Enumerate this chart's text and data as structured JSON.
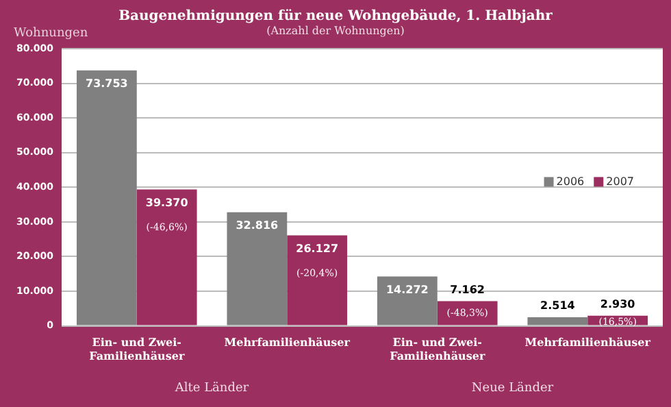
{
  "chart_data": {
    "type": "bar",
    "title": "Baugenehmigungen für neue Wohngebäude, 1. Halbjahr",
    "subtitle": "(Anzahl der Wohnungen)",
    "ylabel": "Wohnungen",
    "categories": [
      "Ein- und Zwei-Familienhäuser",
      "Mehrfamilienhäuser",
      "Ein- und Zwei-Familienhäuser",
      "Mehrfamilienhäuser"
    ],
    "series": [
      {
        "name": "2006",
        "color": "#808080",
        "values": [
          73753,
          32816,
          14272,
          2514
        ],
        "value_labels": [
          "73.753",
          "32.816",
          "14.272",
          "2.514"
        ]
      },
      {
        "name": "2007",
        "color": "#9b2d5f",
        "values": [
          39370,
          26127,
          7162,
          2930
        ],
        "value_labels": [
          "39.370",
          "26.127",
          "7.162",
          "2.930"
        ]
      }
    ],
    "ylim": [
      0,
      80000
    ],
    "yticks": [
      {
        "value": 0,
        "label": "0"
      },
      {
        "value": 10000,
        "label": "10.000"
      },
      {
        "value": 20000,
        "label": "20.000"
      },
      {
        "value": 30000,
        "label": "30.000"
      },
      {
        "value": 40000,
        "label": "40.000"
      },
      {
        "value": 50000,
        "label": "50.000"
      },
      {
        "value": 60000,
        "label": "60.000"
      },
      {
        "value": 70000,
        "label": "70.000"
      },
      {
        "value": 80000,
        "label": "80.000"
      }
    ],
    "grid": "y",
    "legend": "right",
    "annotations": [
      "(-46,6%)",
      "(-20,4%)",
      "(-48,3%)",
      "(16,5%)",
      "Alte Länder",
      "Neue Länder"
    ]
  }
}
